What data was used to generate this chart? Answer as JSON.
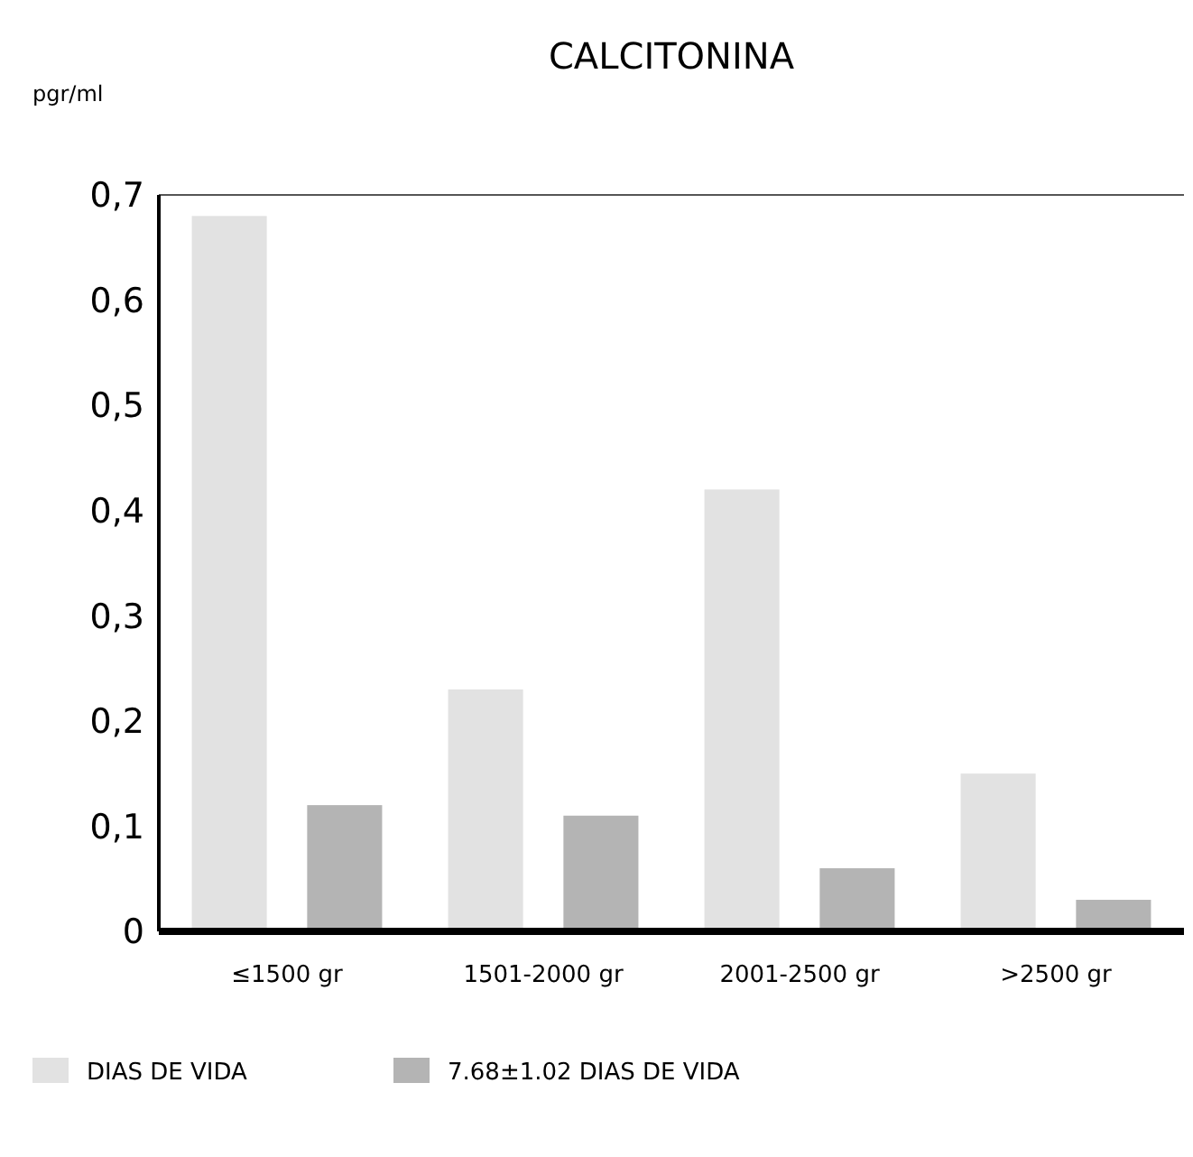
{
  "chart_data": {
    "type": "bar",
    "title": "CALCITONINA",
    "ylabel": "pgr/ml",
    "categories": [
      "≤1500 gr",
      "1501-2000 gr",
      "2001-2500 gr",
      ">2500 gr"
    ],
    "series": [
      {
        "name": "DIAS DE VIDA",
        "color": "#e2e2e2",
        "values": [
          0.68,
          0.23,
          0.42,
          0.15
        ]
      },
      {
        "name": "7.68±1.02 DIAS DE VIDA",
        "color": "#b4b4b4",
        "values": [
          0.12,
          0.11,
          0.06,
          0.03
        ]
      }
    ],
    "ylim": [
      0,
      0.7
    ],
    "yticks": [
      {
        "value": 0,
        "label": "0"
      },
      {
        "value": 0.1,
        "label": "0,1"
      },
      {
        "value": 0.2,
        "label": "0,2"
      },
      {
        "value": 0.3,
        "label": "0,3"
      },
      {
        "value": 0.4,
        "label": "0,4"
      },
      {
        "value": 0.5,
        "label": "0,5"
      },
      {
        "value": 0.6,
        "label": "0,6"
      },
      {
        "value": 0.7,
        "label": "0,7"
      }
    ],
    "grid": false,
    "legend": "bottom"
  }
}
